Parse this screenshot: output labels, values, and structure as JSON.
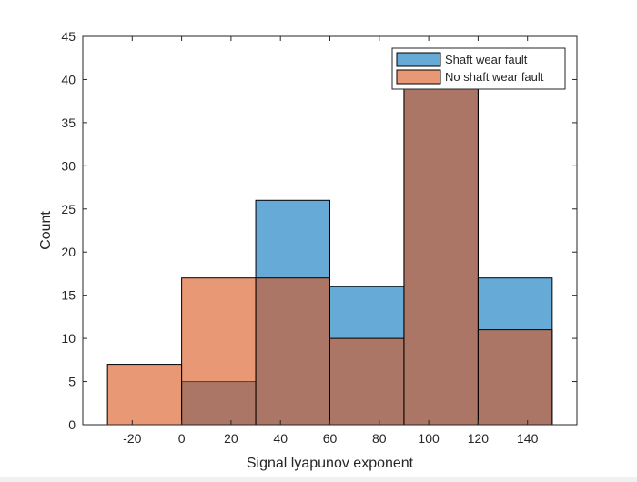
{
  "chart_data": {
    "type": "bar",
    "bin_edges": [
      -30,
      0,
      30,
      60,
      90,
      120,
      150
    ],
    "series": [
      {
        "name": "Shaft wear fault",
        "values": [
          0,
          5,
          26,
          16,
          40,
          17
        ],
        "color": "#0072BD"
      },
      {
        "name": "No shaft wear fault",
        "values": [
          7,
          17,
          17,
          10,
          40,
          11
        ],
        "color": "#D95319"
      }
    ],
    "title": "",
    "xlabel": "Signal lyapunov exponent",
    "ylabel": "Count",
    "xlim": [
      -40,
      160
    ],
    "ylim": [
      0,
      45
    ],
    "xticks": [
      -20,
      0,
      20,
      40,
      60,
      80,
      100,
      120,
      140
    ],
    "yticks": [
      0,
      5,
      10,
      15,
      20,
      25,
      30,
      35,
      40,
      45
    ],
    "bar_opacity": 0.6,
    "grid": false,
    "legend_position": "top-right"
  }
}
